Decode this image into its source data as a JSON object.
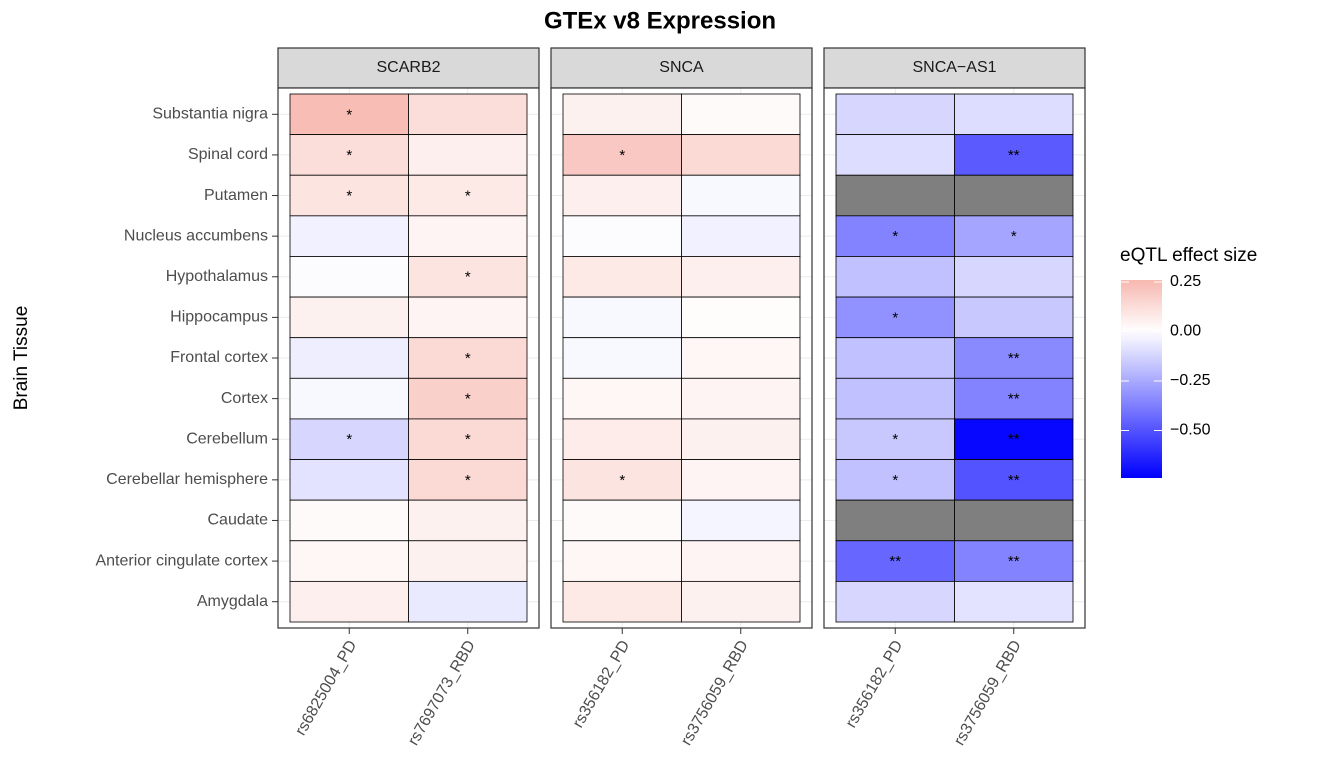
{
  "chart_data": {
    "type": "heatmap",
    "title": "GTEx v8 Expression",
    "y_label": "Brain Tissue",
    "categories": [
      "Substantia nigra",
      "Spinal cord",
      "Putamen",
      "Nucleus accumbens",
      "Hypothalamus",
      "Hippocampus",
      "Frontal cortex",
      "Cortex",
      "Cerebellum",
      "Cerebellar hemisphere",
      "Caudate",
      "Anterior cingulate cortex",
      "Amygdala"
    ],
    "facets": [
      {
        "name": "SCARB2",
        "x": [
          "rs6825004_PD",
          "rs7697073_RBD"
        ],
        "values": [
          [
            0.24,
            0.12
          ],
          [
            0.12,
            0.06
          ],
          [
            0.1,
            0.08
          ],
          [
            -0.04,
            0.04
          ],
          [
            -0.01,
            0.1
          ],
          [
            0.05,
            0.04
          ],
          [
            -0.05,
            0.14
          ],
          [
            -0.02,
            0.17
          ],
          [
            -0.12,
            0.14
          ],
          [
            -0.08,
            0.14
          ],
          [
            0.02,
            0.05
          ],
          [
            0.03,
            0.05
          ],
          [
            0.06,
            -0.06
          ]
        ],
        "labels": [
          [
            "*",
            null
          ],
          [
            "*",
            null
          ],
          [
            "*",
            "*"
          ],
          [
            null,
            null
          ],
          [
            null,
            "*"
          ],
          [
            null,
            null
          ],
          [
            null,
            "*"
          ],
          [
            null,
            "*"
          ],
          [
            "*",
            "*"
          ],
          [
            null,
            "*"
          ],
          [
            null,
            null
          ],
          [
            null,
            null
          ],
          [
            null,
            null
          ]
        ]
      },
      {
        "name": "SNCA",
        "x": [
          "rs356182_PD",
          "rs3756059_RBD"
        ],
        "values": [
          [
            0.05,
            0.02
          ],
          [
            0.2,
            0.14
          ],
          [
            0.06,
            -0.02
          ],
          [
            -0.01,
            -0.04
          ],
          [
            0.08,
            0.06
          ],
          [
            -0.02,
            0.01
          ],
          [
            -0.02,
            0.03
          ],
          [
            0.03,
            0.04
          ],
          [
            0.07,
            0.05
          ],
          [
            0.1,
            0.04
          ],
          [
            0.02,
            -0.03
          ],
          [
            0.03,
            0.04
          ],
          [
            0.08,
            0.05
          ]
        ],
        "labels": [
          [
            null,
            null
          ],
          [
            "*",
            null
          ],
          [
            null,
            null
          ],
          [
            null,
            null
          ],
          [
            null,
            null
          ],
          [
            null,
            null
          ],
          [
            null,
            null
          ],
          [
            null,
            null
          ],
          [
            null,
            null
          ],
          [
            "*",
            null
          ],
          [
            null,
            null
          ],
          [
            null,
            null
          ],
          [
            null,
            null
          ]
        ]
      },
      {
        "name": "SNCA−AS1",
        "x": [
          "rs356182_PD",
          "rs3756059_RBD"
        ],
        "values": [
          [
            -0.12,
            -0.1
          ],
          [
            -0.1,
            -0.48
          ],
          [
            null,
            null
          ],
          [
            -0.36,
            -0.26
          ],
          [
            -0.18,
            -0.12
          ],
          [
            -0.32,
            -0.16
          ],
          [
            -0.18,
            -0.34
          ],
          [
            -0.18,
            -0.36
          ],
          [
            -0.16,
            -0.72
          ],
          [
            -0.18,
            -0.5
          ],
          [
            null,
            null
          ],
          [
            -0.44,
            -0.36
          ],
          [
            -0.12,
            -0.08
          ]
        ],
        "labels": [
          [
            null,
            null
          ],
          [
            null,
            "**"
          ],
          [
            null,
            null
          ],
          [
            "*",
            "*"
          ],
          [
            null,
            null
          ],
          [
            "*",
            null
          ],
          [
            null,
            "**"
          ],
          [
            null,
            "**"
          ],
          [
            "*",
            "**"
          ],
          [
            "*",
            "**"
          ],
          [
            null,
            null
          ],
          [
            "**",
            "**"
          ],
          [
            null,
            null
          ]
        ]
      }
    ],
    "legend_title": "eQTL effect size",
    "fill_lim": [
      -0.74,
      0.26
    ],
    "fill_ticks": [
      0.25,
      {
        "value": 0,
        "label": "0.00"
      },
      {
        "value": -0.25,
        "label": "−0.25"
      },
      {
        "value": -0.5,
        "label": "−0.50"
      }
    ],
    "colors": {
      "low": "#0000ff",
      "mid": "#ffffff",
      "high": "#e8341c",
      "na": "#7f7f7f"
    },
    "grid": true
  }
}
